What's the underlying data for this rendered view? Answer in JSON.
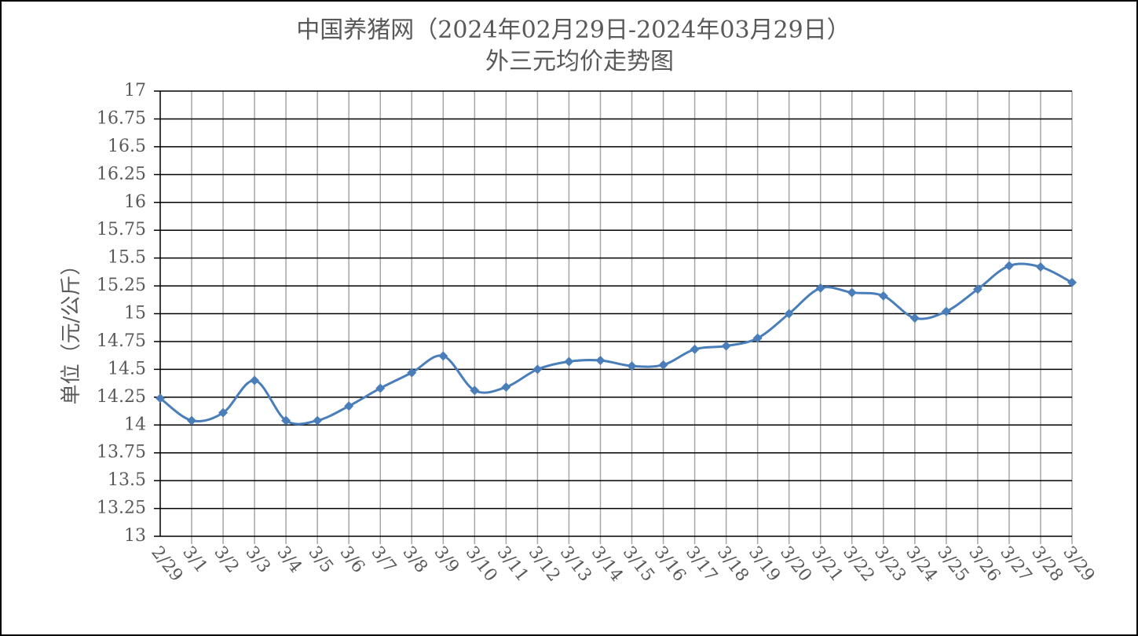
{
  "chart_data": {
    "type": "line",
    "title": "中国养猪网（2024年02月29日-2024年03月29日）",
    "subtitle": "外三元均价走势图",
    "y_label": "单位（元/公斤）",
    "categories": [
      "2/29",
      "3/1",
      "3/2",
      "3/3",
      "3/4",
      "3/5",
      "3/6",
      "3/7",
      "3/8",
      "3/9",
      "3/10",
      "3/11",
      "3/12",
      "3/13",
      "3/14",
      "3/15",
      "3/16",
      "3/17",
      "3/18",
      "3/19",
      "3/20",
      "3/21",
      "3/22",
      "3/23",
      "3/24",
      "3/25",
      "3/26",
      "3/27",
      "3/28",
      "3/29"
    ],
    "series": [
      {
        "name": "外三元均价",
        "color": "#4a7ebb",
        "values": [
          14.24,
          14.04,
          14.11,
          14.4,
          14.04,
          14.04,
          14.17,
          14.33,
          14.47,
          14.62,
          14.31,
          14.34,
          14.5,
          14.57,
          14.58,
          14.53,
          14.54,
          14.68,
          14.71,
          14.78,
          15.0,
          15.23,
          15.19,
          15.16,
          14.96,
          15.02,
          15.22,
          15.43,
          15.42,
          15.28
        ]
      }
    ],
    "ylim": [
      13,
      17
    ],
    "yticks": [
      13,
      13.25,
      13.5,
      13.75,
      14,
      14.25,
      14.5,
      14.75,
      15,
      15.25,
      15.5,
      15.75,
      16,
      16.25,
      16.5,
      16.75,
      17
    ],
    "grid": true,
    "smooth": true
  }
}
